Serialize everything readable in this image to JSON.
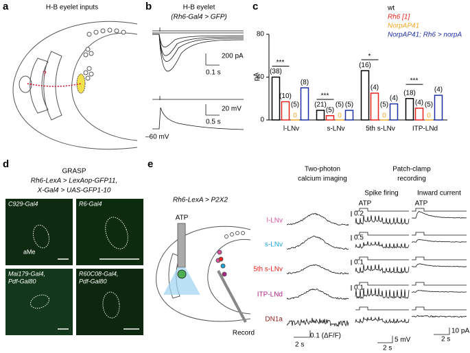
{
  "panel_a": {
    "letter": "a",
    "title": "H-B eyelet inputs",
    "question": "?"
  },
  "panel_b": {
    "letter": "b",
    "title": "H-B eyelet",
    "subtitle": "(Rh6-Gal4 > GFP)",
    "current_scale": "200 pA",
    "current_time": "0.1 s",
    "voltage_scale": "20 mV",
    "voltage_time": "0.5 s",
    "resting": "–60 mV"
  },
  "chart_data": {
    "type": "bar",
    "letter": "c",
    "ylabel": "pA",
    "categories": [
      "l-LNv",
      "s-LNv",
      "5th s-LNv",
      "ITP-LNd"
    ],
    "ylim": [
      0,
      80
    ],
    "yticks": [
      0,
      40,
      80
    ],
    "legend": "upper right",
    "significance": [
      "***",
      "***",
      "*",
      "***"
    ],
    "series": [
      {
        "name": "wt",
        "color": "#000000",
        "values": [
          40,
          9,
          46,
          20
        ],
        "n": [
          "(38)",
          "(21)",
          "(16)",
          "(18)"
        ]
      },
      {
        "name": "Rh6 [1]",
        "color": "#e8221a",
        "values": [
          17,
          4,
          25,
          11
        ],
        "n": [
          "(10)",
          "(5)",
          "(4)",
          "(4)"
        ]
      },
      {
        "name": "NorpAP41",
        "color": "#f5a623",
        "values": [
          0,
          0,
          0,
          0
        ],
        "n": [
          "(5)",
          "(5)",
          "(5)",
          "(5)"
        ]
      },
      {
        "name": "NorpAP41; Rh6 > norpA",
        "color": "#1c2fa0",
        "values": [
          30,
          9,
          15,
          23
        ],
        "n": [
          "(8)",
          "(5)",
          "(4)",
          "(4)"
        ]
      }
    ]
  },
  "panel_d": {
    "letter": "d",
    "title": "GRASP",
    "subtitle": [
      "Rh6-LexA > LexAop-GFP11,",
      "X-Gal4 > UAS-GFP1-10"
    ],
    "images": [
      {
        "label": [
          "C929-Gal4"
        ],
        "region": "aMe"
      },
      {
        "label": [
          "R6-Gal4"
        ]
      },
      {
        "label": [
          "Mai179-Gal4,",
          "Pdf-Gal80"
        ]
      },
      {
        "label": [
          "R60C08-Gal4,",
          "Pdf-Gal80"
        ]
      }
    ]
  },
  "panel_e": {
    "letter": "e",
    "genotype": "Rh6-LexA > P2X2",
    "stimulus": "ATP",
    "record": "Record",
    "imaging_title": [
      "Two-photon",
      "calcium imaging"
    ],
    "patch_title": [
      "Patch-clamp",
      "recording"
    ],
    "columns": [
      "Spike firing",
      "Inward current"
    ],
    "column_stimulus": [
      "ATP",
      "ATP"
    ],
    "rows": [
      {
        "name": "l-LNv",
        "color": "#e0509a",
        "imaging_scale": "0.2"
      },
      {
        "name": "s-LNv",
        "color": "#1aa7d8",
        "imaging_scale": "0.5"
      },
      {
        "name": "5th s-LNv",
        "color": "#e8221a",
        "imaging_scale": "0.1"
      },
      {
        "name": "ITP-LNd",
        "color": "#b0208a",
        "imaging_scale": "0.1"
      },
      {
        "name": "DN1a",
        "color": "#8b1a1a",
        "imaging_scale": "0.1 (ΔF/F)"
      }
    ],
    "imaging_time": "2 s",
    "spike_scale": "5 mV",
    "spike_time": "2 s",
    "current_scale": "10 pA",
    "current_time": "2 s"
  }
}
